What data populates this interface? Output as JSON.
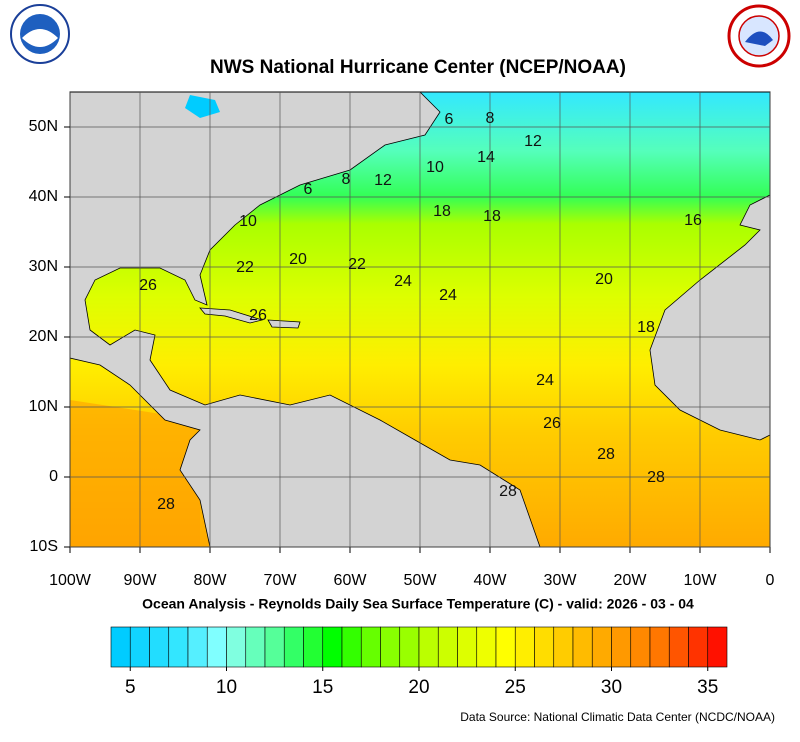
{
  "header": {
    "title": "NWS National Hurricane Center (NCEP/NOAA)"
  },
  "map": {
    "lon_range": [
      -100,
      0
    ],
    "lat_range": [
      -10,
      55
    ],
    "lon_ticks": [
      {
        "value": -100,
        "label": "100W"
      },
      {
        "value": -90,
        "label": "90W"
      },
      {
        "value": -80,
        "label": "80W"
      },
      {
        "value": -70,
        "label": "70W"
      },
      {
        "value": -60,
        "label": "60W"
      },
      {
        "value": -50,
        "label": "50W"
      },
      {
        "value": -40,
        "label": "40W"
      },
      {
        "value": -30,
        "label": "30W"
      },
      {
        "value": -20,
        "label": "20W"
      },
      {
        "value": -10,
        "label": "10W"
      },
      0
    ],
    "lat_ticks": [
      {
        "value": -10,
        "label": "10S"
      },
      0,
      {
        "value": 10,
        "label": "10N"
      },
      {
        "value": 20,
        "label": "20N"
      },
      {
        "value": 30,
        "label": "30N"
      },
      {
        "value": 40,
        "label": "40N"
      },
      {
        "value": 50,
        "label": "50N"
      }
    ],
    "contour_labels": [
      6,
      8,
      12,
      14,
      10,
      12,
      8,
      6,
      10,
      18,
      18,
      16,
      22,
      20,
      22,
      24,
      24,
      20,
      26,
      26,
      18,
      24,
      26,
      28,
      28,
      28,
      28
    ]
  },
  "caption": "Ocean Analysis - Reynolds Daily Sea Surface Temperature (C) - valid: 2026 - 03 - 04",
  "colorbar": {
    "range": [
      4,
      36
    ],
    "colors": [
      "#00ccff",
      "#11d4ff",
      "#22ddff",
      "#33e6ff",
      "#55efff",
      "#80ffff",
      "#80ffe0",
      "#66ffbb",
      "#55ff99",
      "#33ff66",
      "#22ff33",
      "#00ff00",
      "#33ff00",
      "#66ff00",
      "#88ff00",
      "#99ff00",
      "#bbff00",
      "#ccff00",
      "#ddff00",
      "#eeff00",
      "#ffff00",
      "#ffee00",
      "#ffdd00",
      "#ffcc00",
      "#ffbb00",
      "#ffaa00",
      "#ff9900",
      "#ff8800",
      "#ff7700",
      "#ff5500",
      "#ff3300",
      "#ff1100"
    ],
    "ticks": [
      5,
      10,
      15,
      20,
      25,
      30,
      35
    ]
  },
  "source": "Data Source: National Climatic Data Center (NCDC/NOAA)"
}
